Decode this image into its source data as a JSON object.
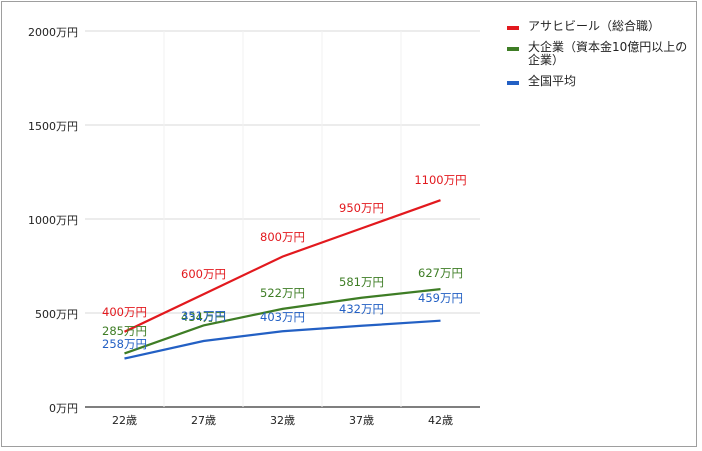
{
  "chart_data": {
    "type": "line",
    "title": "",
    "xlabel": "",
    "ylabel": "",
    "categories": [
      "22歳",
      "27歳",
      "32歳",
      "37歳",
      "42歳"
    ],
    "series": [
      {
        "name": "アサヒビール（総合職）",
        "color": "#e2191e",
        "values": [
          400,
          600,
          800,
          950,
          1100
        ],
        "labels": [
          "400万円",
          "600万円",
          "800万円",
          "950万円",
          "1100万円"
        ]
      },
      {
        "name": "大企業（資本金10億円以上の企業）",
        "color": "#3e7d25",
        "values": [
          285,
          434,
          522,
          581,
          627
        ],
        "labels": [
          "285万円",
          "434万円",
          "522万円",
          "581万円",
          "627万円"
        ]
      },
      {
        "name": "全国平均",
        "color": "#2360c4",
        "values": [
          258,
          351,
          403,
          432,
          459
        ],
        "labels": [
          "258万円",
          "351万円",
          "403万円",
          "432万円",
          "459万円"
        ]
      }
    ],
    "yticks": [
      "0万円",
      "500万円",
      "1000万円",
      "1500万円",
      "2000万円"
    ],
    "ylim": [
      0,
      2000
    ],
    "grid": true,
    "legend_position": "right"
  },
  "legend": {
    "items": [
      {
        "label": "アサヒビール（総合職）",
        "color": "#e2191e"
      },
      {
        "label": "大企業（資本金10億円以上の企業）",
        "color": "#3e7d25"
      },
      {
        "label": "全国平均",
        "color": "#2360c4"
      }
    ]
  }
}
